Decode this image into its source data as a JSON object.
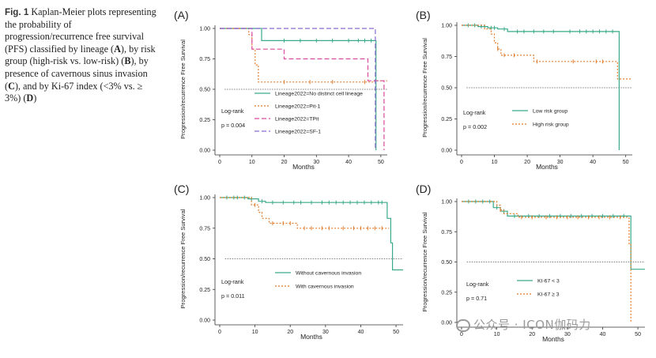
{
  "caption": {
    "label": "Fig. 1",
    "parts": [
      {
        "t": "Kaplan-Meier plots representing the probability of progression/recurrence free survival (PFS) classified by lineage (",
        "b": false
      },
      {
        "t": "A",
        "b": true
      },
      {
        "t": "), by risk group (high-risk vs. low-risk) (",
        "b": false
      },
      {
        "t": "B",
        "b": true
      },
      {
        "t": "), by presence of cavernous sinus invasion (",
        "b": false
      },
      {
        "t": "C",
        "b": true
      },
      {
        "t": "), and by Ki-67 index (<3% vs. ≥ 3%) (",
        "b": false
      },
      {
        "t": "D",
        "b": true
      },
      {
        "t": ")",
        "b": false
      }
    ]
  },
  "watermark": "公众号 · ICON伽码力",
  "chart_data": [
    {
      "type": "line",
      "panel": "(A)",
      "xlabel": "Months",
      "ylabel": "Progression/recurrence Free Survival",
      "xlim": [
        0,
        52
      ],
      "ylim": [
        0,
        1
      ],
      "xticks": [
        "0",
        "10",
        "20",
        "30",
        "40",
        "50"
      ],
      "yticks": [
        "0.00",
        "0.25",
        "0.50",
        "0.75",
        "1.00"
      ],
      "reference_y": 0.5,
      "logrank_label": "Log-rank",
      "p_value": "p = 0.004",
      "legend_position": "bottom-center",
      "series": [
        {
          "name": "Lineage2022=No distinct cell lineage",
          "color": "#3aaa8a",
          "dash": "solid",
          "x": [
            0,
            13,
            13,
            48.5,
            48.5
          ],
          "y": [
            1.0,
            1.0,
            0.9,
            0.9,
            0.0
          ],
          "censor_x": [
            20,
            25,
            30,
            35,
            40,
            43,
            45,
            47
          ],
          "censor_y": [
            0.9,
            0.9,
            0.9,
            0.9,
            0.9,
            0.9,
            0.9,
            0.9
          ]
        },
        {
          "name": "Lineage2022=Pit-1",
          "color": "#e07b2a",
          "dash": "dotted",
          "x": [
            0,
            9,
            9,
            10,
            10,
            11,
            11,
            12,
            12,
            48,
            48,
            52
          ],
          "y": [
            1.0,
            1.0,
            0.95,
            0.95,
            0.83,
            0.83,
            0.7,
            0.7,
            0.56,
            0.56,
            0.57,
            0.57
          ],
          "censor_x": [
            20,
            28,
            35,
            45
          ],
          "censor_y": [
            0.56,
            0.56,
            0.56,
            0.56
          ]
        },
        {
          "name": "Lineage2022=TPit",
          "color": "#d94aa0",
          "dash": "dashed",
          "x": [
            0,
            10,
            10,
            20,
            20,
            46,
            46,
            51,
            51
          ],
          "y": [
            1.0,
            1.0,
            0.83,
            0.83,
            0.75,
            0.75,
            0.57,
            0.57,
            0.0
          ],
          "censor_x": [],
          "censor_y": []
        },
        {
          "name": "Lineage2022=SF-1",
          "color": "#8a6bd0",
          "dash": "dashed",
          "x": [
            0,
            48.3,
            48.3
          ],
          "y": [
            1.0,
            1.0,
            0.0
          ],
          "censor_x": [],
          "censor_y": []
        }
      ]
    },
    {
      "type": "line",
      "panel": "(B)",
      "xlabel": "Months",
      "ylabel": "Progression/recurrence Free Survival",
      "xlim": [
        0,
        52
      ],
      "ylim": [
        0,
        1
      ],
      "xticks": [
        "0",
        "10",
        "20",
        "30",
        "40",
        "50"
      ],
      "yticks": [
        "0.00",
        "0.25",
        "0.50",
        "0.75",
        "1.00"
      ],
      "reference_y": 0.5,
      "logrank_label": "Log-rank",
      "p_value": "p = 0.002",
      "legend_position": "bottom-center",
      "series": [
        {
          "name": "Low risk group",
          "color": "#3aaa8a",
          "dash": "solid",
          "x": [
            0,
            5,
            5,
            8,
            8,
            11,
            11,
            14,
            14,
            48,
            48
          ],
          "y": [
            1.0,
            1.0,
            0.99,
            0.99,
            0.98,
            0.98,
            0.97,
            0.97,
            0.95,
            0.95,
            0.0
          ],
          "censor_x": [
            2,
            4,
            6,
            7,
            9,
            10,
            13,
            17,
            19,
            22,
            25,
            28,
            33,
            36,
            38,
            40,
            42,
            44,
            46
          ],
          "censor_y": [
            1.0,
            1.0,
            0.99,
            0.99,
            0.98,
            0.98,
            0.97,
            0.95,
            0.95,
            0.95,
            0.95,
            0.95,
            0.95,
            0.95,
            0.95,
            0.95,
            0.95,
            0.95,
            0.95
          ]
        },
        {
          "name": "High risk group",
          "color": "#e07b2a",
          "dash": "dotted",
          "x": [
            0,
            7,
            7,
            9,
            9,
            10,
            10,
            11,
            11,
            12,
            12,
            22,
            22,
            47.5,
            47.5,
            52
          ],
          "y": [
            1.0,
            1.0,
            0.97,
            0.97,
            0.93,
            0.93,
            0.86,
            0.86,
            0.81,
            0.81,
            0.76,
            0.76,
            0.71,
            0.71,
            0.57,
            0.57
          ],
          "censor_x": [
            11,
            13,
            16,
            23,
            34,
            41,
            43
          ],
          "censor_y": [
            0.81,
            0.76,
            0.76,
            0.71,
            0.71,
            0.71,
            0.71
          ]
        }
      ]
    },
    {
      "type": "line",
      "panel": "(C)",
      "xlabel": "Months",
      "ylabel": "Progression/recurrence Free Survival",
      "xlim": [
        0,
        52
      ],
      "ylim": [
        0,
        1
      ],
      "xticks": [
        "0",
        "10",
        "20",
        "30",
        "40",
        "50"
      ],
      "yticks": [
        "0.00",
        "0.25",
        "0.50",
        "0.75",
        "1.00"
      ],
      "reference_y": 0.5,
      "logrank_label": "Log-rank",
      "p_value": "p = 0.011",
      "legend_position": "bottom-center",
      "series": [
        {
          "name": "Without cavernous invasion",
          "color": "#3aaa8a",
          "dash": "solid",
          "x": [
            0,
            8,
            8,
            11,
            11,
            13,
            13,
            47.5,
            47.5,
            48.5,
            48.5,
            49,
            49,
            52
          ],
          "y": [
            1.0,
            1.0,
            0.99,
            0.99,
            0.97,
            0.97,
            0.96,
            0.96,
            0.83,
            0.83,
            0.63,
            0.63,
            0.41,
            0.41
          ],
          "censor_x": [
            2,
            4,
            5,
            7,
            9,
            12,
            15,
            18,
            21,
            23,
            26,
            29,
            31,
            33,
            35,
            37,
            39,
            41,
            43,
            45,
            46
          ],
          "censor_y": [
            1.0,
            1.0,
            1.0,
            1.0,
            0.99,
            0.97,
            0.96,
            0.96,
            0.96,
            0.96,
            0.96,
            0.96,
            0.96,
            0.96,
            0.96,
            0.96,
            0.96,
            0.96,
            0.96,
            0.96,
            0.96
          ]
        },
        {
          "name": "With cavernous invasion",
          "color": "#e07b2a",
          "dash": "dotted",
          "x": [
            0,
            9,
            9,
            11,
            11,
            12,
            12,
            14,
            14,
            22,
            22,
            48
          ],
          "y": [
            1.0,
            1.0,
            0.94,
            0.94,
            0.88,
            0.88,
            0.83,
            0.83,
            0.79,
            0.79,
            0.75,
            0.75
          ],
          "censor_x": [
            10,
            15,
            18,
            20,
            24,
            26,
            29,
            31,
            35,
            38,
            40,
            42,
            44,
            46
          ],
          "censor_y": [
            0.94,
            0.79,
            0.79,
            0.79,
            0.75,
            0.75,
            0.75,
            0.75,
            0.75,
            0.75,
            0.75,
            0.75,
            0.75,
            0.75
          ]
        }
      ]
    },
    {
      "type": "line",
      "panel": "(D)",
      "xlabel": "Months",
      "ylabel": "Progression/recurrence Free Survival",
      "xlim": [
        0,
        52
      ],
      "ylim": [
        0,
        1
      ],
      "xticks": [
        "0",
        "10",
        "20",
        "30",
        "40",
        "50"
      ],
      "yticks": [
        "0.00",
        "0.25",
        "0.50",
        "0.75",
        "1.00"
      ],
      "reference_y": 0.5,
      "logrank_label": "Log-rank",
      "p_value": "p = 0.71",
      "legend_position": "bottom-center",
      "series": [
        {
          "name": "KI-67 < 3",
          "color": "#3aaa8a",
          "dash": "solid",
          "x": [
            0,
            9,
            9,
            11,
            11,
            13,
            13,
            48,
            48,
            52
          ],
          "y": [
            1.0,
            1.0,
            0.95,
            0.95,
            0.92,
            0.92,
            0.88,
            0.88,
            0.44,
            0.44
          ],
          "censor_x": [
            2,
            4,
            6,
            8,
            10,
            12,
            15,
            19,
            22,
            25,
            28,
            31,
            34,
            37,
            40,
            43,
            46
          ],
          "censor_y": [
            1.0,
            1.0,
            1.0,
            1.0,
            0.95,
            0.92,
            0.88,
            0.88,
            0.88,
            0.88,
            0.88,
            0.88,
            0.88,
            0.88,
            0.88,
            0.88,
            0.88
          ]
        },
        {
          "name": "KI-67 ≥ 3",
          "color": "#e07b2a",
          "dash": "dotted",
          "x": [
            0,
            10,
            10,
            11,
            11,
            12,
            12,
            16,
            16,
            47.5,
            47.5,
            48,
            48
          ],
          "y": [
            1.0,
            1.0,
            0.97,
            0.97,
            0.93,
            0.93,
            0.9,
            0.9,
            0.87,
            0.87,
            0.65,
            0.65,
            0.0
          ],
          "censor_x": [
            11,
            17,
            20,
            24,
            27,
            30,
            33,
            36,
            39,
            42,
            45
          ],
          "censor_y": [
            0.93,
            0.87,
            0.87,
            0.87,
            0.87,
            0.87,
            0.87,
            0.87,
            0.87,
            0.87,
            0.87
          ]
        }
      ]
    }
  ]
}
